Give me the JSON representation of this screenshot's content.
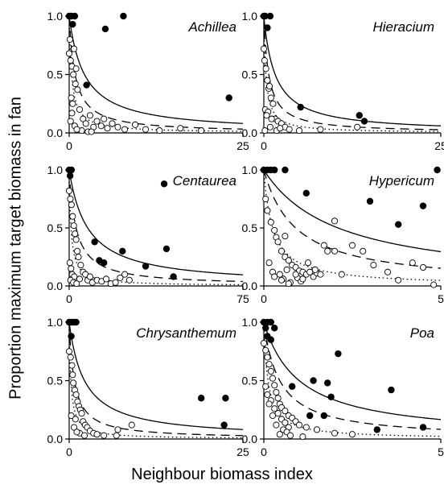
{
  "figure": {
    "xlabel": "Neighbour biomass index",
    "ylabel": "Proportion maximum target biomass in fan"
  },
  "chart_data": [
    {
      "type": "scatter",
      "title": "Achillea",
      "xlim": [
        0,
        25
      ],
      "ylim": [
        0,
        1
      ],
      "x_ticks": [
        "0",
        "25"
      ],
      "y_ticks": [
        "0.0",
        "0.5",
        "1.0"
      ],
      "filled": {
        "x": [
          0,
          0.3,
          0.5,
          0.8,
          5.2,
          7.8,
          2.5,
          23
        ],
        "y": [
          1.0,
          1.0,
          0.93,
          1.0,
          0.89,
          1.0,
          0.41,
          0.3
        ]
      },
      "open": {
        "x": [
          0,
          0.2,
          0.4,
          0.6,
          0.9,
          1.2,
          0.3,
          0.5,
          1.5,
          2.0,
          2.4,
          3.0,
          3.5,
          4.0,
          4.6,
          5.0,
          5.5,
          6.2,
          7.0,
          8.0,
          9.5,
          11.0,
          13.0,
          16.0,
          19.0,
          0.1,
          0.7,
          1.0,
          0.2,
          0.8,
          1.8,
          2.7,
          0.4,
          1.1,
          3.2
        ],
        "y": [
          0.68,
          0.62,
          0.57,
          0.5,
          0.42,
          0.37,
          0.3,
          0.25,
          0.2,
          0.12,
          0.08,
          0.15,
          0.05,
          0.1,
          0.06,
          0.12,
          0.04,
          0.08,
          0.05,
          0.03,
          0.07,
          0.03,
          0.02,
          0.04,
          0.02,
          0.8,
          0.72,
          0.55,
          0.1,
          0.06,
          0.02,
          0.01,
          0.17,
          0.03,
          0.01
        ]
      },
      "curves": {
        "solid": 2.2,
        "dashed": 0.85,
        "dotted": 0.35
      }
    },
    {
      "type": "scatter",
      "title": "Hieracium",
      "xlim": [
        0,
        25
      ],
      "ylim": [
        0,
        1
      ],
      "x_ticks": [
        "0",
        "25"
      ],
      "y_ticks": [
        "0.0",
        "0.5",
        "1.0"
      ],
      "filled": {
        "x": [
          0,
          0.2,
          0.5,
          0.9,
          5.2,
          13.5,
          14.2
        ],
        "y": [
          1.0,
          1.0,
          0.9,
          1.0,
          0.22,
          0.15,
          0.1
        ]
      },
      "open": {
        "x": [
          0,
          0.1,
          0.3,
          0.5,
          0.7,
          1.0,
          1.3,
          0.2,
          0.6,
          1.6,
          2.0,
          2.5,
          3.0,
          3.6,
          0.4,
          0.9,
          5.0,
          8.0,
          13.2,
          0.15,
          1.1,
          1.8,
          0.8,
          2.3
        ],
        "y": [
          0.72,
          0.62,
          0.55,
          0.45,
          0.38,
          0.3,
          0.25,
          0.2,
          0.18,
          0.12,
          0.1,
          0.08,
          0.05,
          0.03,
          0.15,
          0.05,
          0.02,
          0.03,
          0.05,
          0.02,
          0.12,
          0.02,
          0.4,
          0.04
        ]
      },
      "curves": {
        "solid": 1.6,
        "dashed": 0.7,
        "dotted": 0.3
      }
    },
    {
      "type": "scatter",
      "title": "Centaurea",
      "xlim": [
        0,
        75
      ],
      "ylim": [
        0,
        1
      ],
      "x_ticks": [
        "0",
        "75"
      ],
      "y_ticks": [
        "0.0",
        "0.5",
        "1.0"
      ],
      "filled": {
        "x": [
          0,
          0.4,
          1.0,
          11,
          13,
          15,
          23,
          33,
          41,
          42,
          45
        ],
        "y": [
          1.0,
          0.95,
          1.0,
          0.38,
          0.22,
          0.2,
          0.3,
          0.17,
          0.88,
          0.32,
          0.08
        ]
      },
      "open": {
        "x": [
          0,
          0.5,
          1.0,
          1.5,
          2.0,
          2.5,
          3.0,
          3.5,
          4.0,
          5.0,
          6.0,
          7.0,
          8.0,
          9.0,
          10.0,
          12.0,
          14.0,
          16.0,
          18.0,
          20.0,
          22.0,
          24.0,
          26.0,
          0.3,
          0.8,
          1.3,
          2.2,
          0.6,
          1.8,
          4.5,
          3.2
        ],
        "y": [
          0.82,
          0.75,
          0.7,
          0.6,
          0.52,
          0.45,
          0.4,
          0.3,
          0.25,
          0.18,
          0.12,
          0.1,
          0.05,
          0.08,
          0.03,
          0.05,
          0.04,
          0.06,
          0.02,
          0.03,
          0.07,
          0.1,
          0.05,
          0.2,
          0.15,
          0.1,
          0.08,
          0.05,
          0.03,
          0.06,
          0.02
        ]
      },
      "curves": {
        "solid": 8.0,
        "dashed": 3.0,
        "dotted": 0.8
      }
    },
    {
      "type": "scatter",
      "title": "Hypericum",
      "xlim": [
        0,
        5
      ],
      "ylim": [
        0,
        1
      ],
      "x_ticks": [
        "0",
        "5"
      ],
      "y_ticks": [
        "0.0",
        "0.5",
        "1.0"
      ],
      "filled": {
        "x": [
          0,
          0.1,
          0.2,
          0.3,
          0.6,
          1.2,
          3.0,
          3.8,
          4.5,
          4.9
        ],
        "y": [
          1.0,
          1.0,
          1.0,
          1.0,
          1.0,
          0.8,
          0.73,
          0.53,
          0.69,
          1.0
        ]
      },
      "open": {
        "x": [
          0.1,
          0.2,
          0.3,
          0.35,
          0.4,
          0.5,
          0.6,
          0.7,
          0.8,
          0.9,
          1.0,
          1.1,
          1.2,
          1.3,
          1.4,
          1.5,
          1.6,
          1.7,
          1.8,
          2.0,
          2.2,
          2.5,
          2.8,
          3.1,
          3.5,
          3.8,
          4.2,
          4.5,
          4.8,
          0.15,
          0.25,
          0.45,
          0.55,
          0.65,
          0.75,
          0.95,
          1.05,
          1.25,
          1.45,
          0.3,
          0.5,
          0.7,
          0.9,
          1.1,
          0.05,
          0.6,
          2.0
        ],
        "y": [
          0.65,
          0.55,
          0.48,
          0.42,
          0.38,
          0.3,
          0.25,
          0.22,
          0.18,
          0.16,
          0.13,
          0.12,
          0.1,
          0.12,
          0.08,
          0.11,
          0.1,
          0.35,
          0.3,
          0.3,
          0.1,
          0.35,
          0.3,
          0.18,
          0.12,
          0.05,
          0.2,
          0.16,
          0.01,
          0.2,
          0.12,
          0.1,
          0.06,
          0.14,
          0.03,
          0.07,
          0.04,
          0.2,
          0.14,
          0.08,
          0.05,
          0.02,
          0.1,
          0.06,
          0.75,
          0.43,
          0.56
        ]
      },
      "curves": {
        "solid": 2.1,
        "dashed": 0.9,
        "dotted": 0.25
      }
    },
    {
      "type": "scatter",
      "title": "Chrysanthemum",
      "xlim": [
        0,
        25
      ],
      "ylim": [
        0,
        1
      ],
      "x_ticks": [
        "0",
        "25"
      ],
      "y_ticks": [
        "0.0",
        "0.5",
        "1.0"
      ],
      "filled": {
        "x": [
          0,
          0.3,
          0.6,
          1.0,
          0.3,
          19,
          22.5,
          22.3
        ],
        "y": [
          1.0,
          1.0,
          1.0,
          1.0,
          0.88,
          0.35,
          0.35,
          0.12
        ]
      },
      "open": {
        "x": [
          0,
          0.2,
          0.4,
          0.5,
          0.6,
          0.8,
          1.0,
          1.2,
          1.4,
          1.6,
          1.8,
          2.0,
          2.3,
          2.6,
          3.0,
          3.5,
          4.0,
          5.0,
          7.0,
          9.0,
          0.3,
          0.9,
          1.5,
          2.2,
          0.7,
          1.1,
          6.8
        ],
        "y": [
          0.75,
          0.7,
          0.63,
          0.55,
          0.48,
          0.42,
          0.38,
          0.32,
          0.28,
          0.25,
          0.22,
          0.15,
          0.12,
          0.1,
          0.07,
          0.05,
          0.04,
          0.03,
          0.08,
          0.12,
          0.2,
          0.17,
          0.05,
          0.03,
          0.1,
          0.06,
          0.03
        ]
      },
      "curves": {
        "solid": 2.2,
        "dashed": 0.75,
        "dotted": 0.25
      }
    },
    {
      "type": "scatter",
      "title": "Poa",
      "xlim": [
        0,
        5
      ],
      "ylim": [
        0,
        1
      ],
      "x_ticks": [
        "0",
        "5"
      ],
      "y_ticks": [
        "0.0",
        "0.5",
        "1.0"
      ],
      "filled": {
        "x": [
          0,
          0.05,
          0.1,
          0.2,
          0.3,
          0.1,
          0.2,
          1.4,
          1.8,
          1.9,
          2.1,
          3.6,
          1.3,
          1.7,
          4.5,
          0.8,
          3.2
        ],
        "y": [
          1.0,
          0.95,
          1.0,
          1.0,
          0.95,
          0.88,
          0.85,
          0.5,
          0.48,
          0.36,
          0.73,
          0.42,
          0.2,
          0.2,
          0.1,
          0.45,
          0.08
        ]
      },
      "open": {
        "x": [
          0,
          0.05,
          0.1,
          0.15,
          0.2,
          0.25,
          0.3,
          0.35,
          0.4,
          0.45,
          0.5,
          0.6,
          0.7,
          0.8,
          0.9,
          1.0,
          1.2,
          1.5,
          2.0,
          2.5,
          0.1,
          0.2,
          0.3,
          0.4,
          0.5,
          0.6,
          0.7,
          0.15,
          0.25,
          0.35,
          0.55,
          0.65,
          0.75,
          0.05,
          0.45,
          1.1
        ],
        "y": [
          0.82,
          0.76,
          0.7,
          0.64,
          0.58,
          0.52,
          0.46,
          0.4,
          0.35,
          0.3,
          0.27,
          0.24,
          0.2,
          0.18,
          0.15,
          0.12,
          0.1,
          0.08,
          0.05,
          0.04,
          0.38,
          0.33,
          0.26,
          0.22,
          0.17,
          0.14,
          0.1,
          0.3,
          0.2,
          0.12,
          0.08,
          0.06,
          0.03,
          0.45,
          0.04,
          0.02
        ]
      },
      "curves": {
        "solid": 1.0,
        "dashed": 0.45,
        "dotted": 0.12
      }
    }
  ]
}
